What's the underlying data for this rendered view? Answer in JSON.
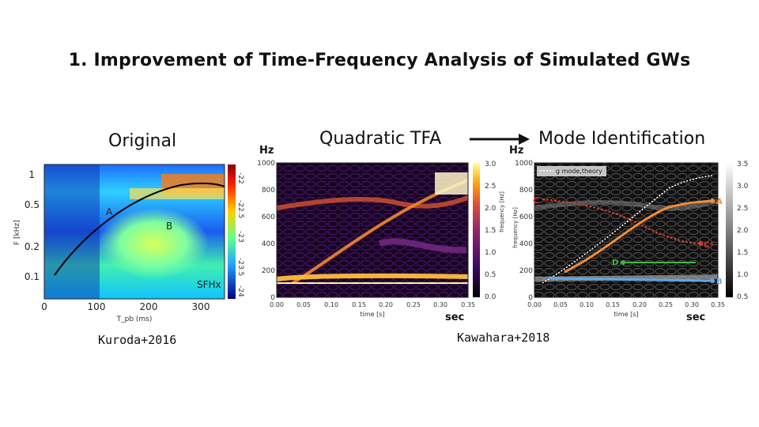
{
  "title": "1. Improvement of Time-Frequency Analysis of Simulated GWs",
  "labels": {
    "original": "Original",
    "quadratic": "Quadratic TFA",
    "mode_id": "Mode Identification",
    "hz_mid": "Hz",
    "hz_right": "Hz",
    "sec_mid": "sec",
    "sec_right": "sec"
  },
  "references": {
    "left": "Kuroda+2016",
    "right": "Kawahara+2018"
  },
  "left_plot": {
    "y_axis_label": "F [kHz]",
    "x_axis_label": "T_pb (ms)",
    "y_ticks": [
      "1",
      "0.5",
      "0.2",
      "0.1"
    ],
    "x_ticks": [
      "0",
      "100",
      "200",
      "300"
    ],
    "colorbar_ticks": [
      "-22",
      "-22.5",
      "-23",
      "-23.5",
      "-24"
    ],
    "annotations": {
      "a": "A",
      "b": "B",
      "model": "SFHx"
    }
  },
  "mid_plot": {
    "y_axis_label": "frequency [Hz]",
    "x_axis_label": "time [s]",
    "y_ticks": [
      "1000",
      "800",
      "600",
      "400",
      "200",
      "0"
    ],
    "x_ticks": [
      "0.00",
      "0.05",
      "0.10",
      "0.15",
      "0.20",
      "0.25",
      "0.30",
      "0.35"
    ],
    "colorbar_ticks": [
      "3.0",
      "2.5",
      "2.0",
      "1.5",
      "1.0",
      "0.5",
      "0.0"
    ]
  },
  "right_plot": {
    "y_axis_label": "frequency [Hz]",
    "x_axis_label": "time [s]",
    "y_ticks": [
      "1000",
      "800",
      "600",
      "400",
      "200",
      "0"
    ],
    "x_ticks": [
      "0.00",
      "0.05",
      "0.10",
      "0.15",
      "0.20",
      "0.25",
      "0.30",
      "0.35"
    ],
    "colorbar_ticks": [
      "3.5",
      "3.0",
      "2.5",
      "2.0",
      "1.5",
      "1.0",
      "0.5"
    ],
    "legend": "g mode,theory",
    "modes": {
      "a": "A",
      "b": "B",
      "c": "C",
      "c_star": "C*",
      "d": "D"
    },
    "colors": {
      "a": "#f28c38",
      "b": "#5fa8e8",
      "c": "#d63a2a",
      "d": "#3cba3c",
      "theory": "#ffffff"
    }
  }
}
